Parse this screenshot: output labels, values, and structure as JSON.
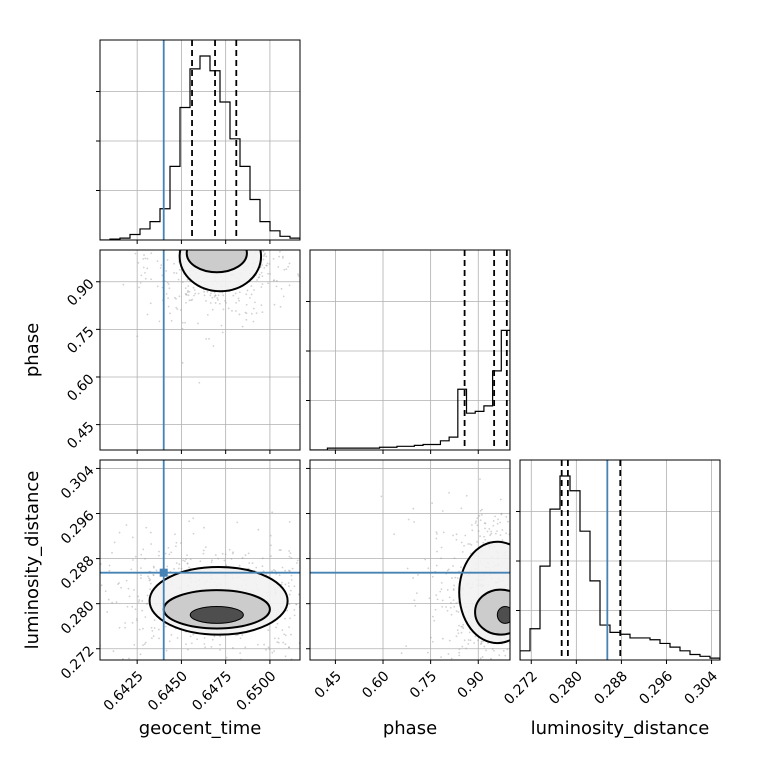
{
  "chart_data": {
    "type": "corner",
    "params": [
      {
        "key": "geocent_time",
        "label": "geocent_time",
        "range": [
          0.6404,
          0.6517
        ],
        "ticks": [
          0.6425,
          0.645,
          0.6475,
          0.65
        ],
        "tick_labels": [
          "0.6425",
          "0.6450",
          "0.6475",
          "0.6500"
        ],
        "truth": 0.644,
        "quantiles": [
          0.6456,
          0.6469,
          0.6481
        ]
      },
      {
        "key": "phase",
        "label": "phase",
        "range": [
          0.37,
          1.0
        ],
        "ticks": [
          0.45,
          0.6,
          0.75,
          0.9
        ],
        "tick_labels": [
          "0.45",
          "0.60",
          "0.75",
          "0.90"
        ],
        "truth": null,
        "quantiles": [
          0.857,
          0.95,
          0.99
        ]
      },
      {
        "key": "luminosity_distance",
        "label": "luminosity_distance",
        "range": [
          0.27,
          0.3055
        ],
        "ticks": [
          0.272,
          0.28,
          0.288,
          0.296,
          0.304
        ],
        "tick_labels": [
          "0.272",
          "0.280",
          "0.288",
          "0.296",
          "0.304"
        ],
        "truth": 0.2855,
        "quantiles": [
          0.2774,
          0.2785,
          0.2878
        ]
      }
    ],
    "histograms": {
      "geocent_time": [
        0.0,
        0.005,
        0.01,
        0.03,
        0.06,
        0.1,
        0.17,
        0.4,
        0.72,
        0.93,
        1.0,
        0.92,
        0.75,
        0.55,
        0.4,
        0.22,
        0.1,
        0.05,
        0.02,
        0.01
      ],
      "phase": [
        0.0,
        0.0,
        0.01,
        0.01,
        0.01,
        0.01,
        0.01,
        0.01,
        0.015,
        0.015,
        0.02,
        0.02,
        0.025,
        0.03,
        0.03,
        0.05,
        0.07,
        0.33,
        0.2,
        0.21,
        0.24,
        0.43,
        0.65
      ],
      "luminosity_distance": [
        0.05,
        0.17,
        0.51,
        0.82,
        1.0,
        0.92,
        0.7,
        0.43,
        0.19,
        0.15,
        0.14,
        0.12,
        0.12,
        0.11,
        0.09,
        0.07,
        0.05,
        0.03,
        0.02,
        0.01
      ]
    },
    "contours": [
      {
        "x": "geocent_time",
        "y": "phase",
        "levels": [
          {
            "cx": 0.6472,
            "cy": 0.98,
            "rx": 0.0023,
            "ry": 0.11
          },
          {
            "cx": 0.647,
            "cy": 0.99,
            "rx": 0.0017,
            "ry": 0.06
          }
        ]
      },
      {
        "x": "geocent_time",
        "y": "luminosity_distance",
        "levels": [
          {
            "cx": 0.6471,
            "cy": 0.2805,
            "rx": 0.0039,
            "ry": 0.006
          },
          {
            "cx": 0.647,
            "cy": 0.279,
            "rx": 0.003,
            "ry": 0.0034
          },
          {
            "cx": 0.647,
            "cy": 0.278,
            "rx": 0.0015,
            "ry": 0.0015
          }
        ]
      },
      {
        "x": "phase",
        "y": "luminosity_distance",
        "levels": [
          {
            "cx": 0.96,
            "cy": 0.282,
            "rx": 0.12,
            "ry": 0.009
          },
          {
            "cx": 0.97,
            "cy": 0.2785,
            "rx": 0.08,
            "ry": 0.004
          },
          {
            "cx": 0.985,
            "cy": 0.278,
            "rx": 0.025,
            "ry": 0.0015
          }
        ]
      }
    ],
    "truth_marker": {
      "x": "geocent_time",
      "y": "luminosity_distance",
      "value": [
        0.644,
        0.2855
      ]
    },
    "colors": {
      "truth": "#4682b4",
      "hist": "#000000",
      "grid": "#b0b0b0",
      "points": "#999999"
    },
    "grid": true
  }
}
